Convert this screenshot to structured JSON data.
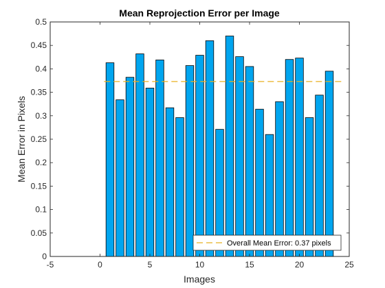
{
  "chart_data": {
    "type": "bar",
    "title": "Mean Reprojection Error per Image",
    "xlabel": "Images",
    "ylabel": "Mean Error in Pixels",
    "xlim": [
      -5,
      25
    ],
    "ylim": [
      0,
      0.5
    ],
    "x_ticks": [
      "-5",
      "0",
      "5",
      "10",
      "15",
      "20",
      "25"
    ],
    "y_ticks": [
      "0",
      "0.05",
      "0.1",
      "0.15",
      "0.2",
      "0.25",
      "0.3",
      "0.35",
      "0.4",
      "0.45",
      "0.5"
    ],
    "categories": [
      1,
      2,
      3,
      4,
      5,
      6,
      7,
      8,
      9,
      10,
      11,
      12,
      13,
      14,
      15,
      16,
      17,
      18,
      19,
      20,
      21,
      22,
      23
    ],
    "values": [
      0.413,
      0.334,
      0.382,
      0.432,
      0.359,
      0.419,
      0.317,
      0.296,
      0.407,
      0.429,
      0.46,
      0.271,
      0.47,
      0.426,
      0.405,
      0.314,
      0.26,
      0.33,
      0.42,
      0.423,
      0.296,
      0.344,
      0.395
    ],
    "mean_line": {
      "value": 0.373,
      "label": "Overall Mean Error: 0.37 pixels"
    },
    "legend_position": "bottom-right",
    "grid": false,
    "colors": {
      "bar_fill": "#00A5EF",
      "bar_edge": "#000000",
      "mean_line": "#E8B020",
      "axis": "#262626"
    }
  }
}
